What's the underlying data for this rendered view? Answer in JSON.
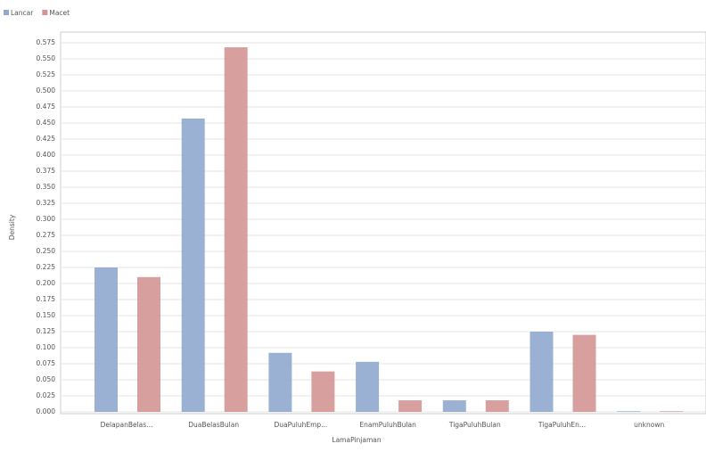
{
  "chart_data": {
    "type": "bar",
    "x_label": "LamaPinjaman",
    "y_label": "Density",
    "categories": [
      "DelapanBelas...",
      "DuaBelasBulan",
      "DuaPuluhEmp...",
      "EnamPuluhBulan",
      "TigaPuluhBulan",
      "TigaPuluhEn...",
      "unknown"
    ],
    "series": [
      {
        "name": "Lancar",
        "color": "#8fa9cf",
        "values": [
          0.225,
          0.457,
          0.092,
          0.078,
          0.018,
          0.125,
          0.001
        ]
      },
      {
        "name": "Macet",
        "color": "#d49595",
        "values": [
          0.21,
          0.568,
          0.063,
          0.018,
          0.018,
          0.12,
          0.001
        ]
      }
    ],
    "ylim": [
      0,
      0.575
    ],
    "yticks": [
      {
        "value": 0,
        "label": "0.000"
      },
      {
        "value": 0.025,
        "label": "0.025"
      },
      {
        "value": 0.05,
        "label": "0.050"
      },
      {
        "value": 0.075,
        "label": "0.075"
      },
      {
        "value": 0.1,
        "label": "0.100"
      },
      {
        "value": 0.125,
        "label": "0.125"
      },
      {
        "value": 0.15,
        "label": "0.150"
      },
      {
        "value": 0.175,
        "label": "0.175"
      },
      {
        "value": 0.2,
        "label": "0.200"
      },
      {
        "value": 0.225,
        "label": "0.225"
      },
      {
        "value": 0.25,
        "label": "0.250"
      },
      {
        "value": 0.275,
        "label": "0.275"
      },
      {
        "value": 0.3,
        "label": "0.300"
      },
      {
        "value": 0.325,
        "label": "0.325"
      },
      {
        "value": 0.35,
        "label": "0.350"
      },
      {
        "value": 0.375,
        "label": "0.375"
      },
      {
        "value": 0.4,
        "label": "0.400"
      },
      {
        "value": 0.425,
        "label": "0.425"
      },
      {
        "value": 0.45,
        "label": "0.450"
      },
      {
        "value": 0.475,
        "label": "0.475"
      },
      {
        "value": 0.5,
        "label": "0.500"
      },
      {
        "value": 0.525,
        "label": "0.525"
      },
      {
        "value": 0.55,
        "label": "0.550"
      },
      {
        "value": 0.575,
        "label": "0.575"
      }
    ],
    "grid": true,
    "legend": "top-left"
  }
}
